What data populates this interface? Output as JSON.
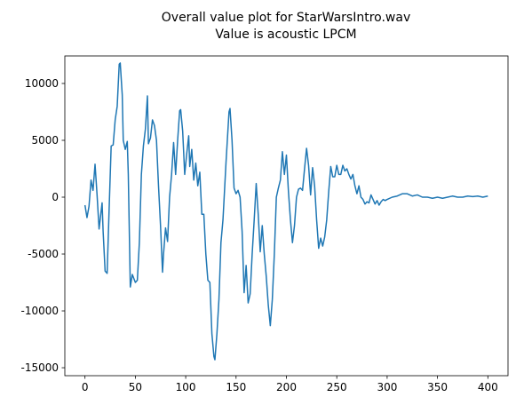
{
  "chart_data": {
    "type": "line",
    "title": "Overall value plot for StarWarsIntro.wav",
    "subtitle": "Value is acoustic LPCM",
    "xlim": [
      -20,
      420
    ],
    "ylim": [
      -15700,
      12420
    ],
    "xticks": [
      0,
      50,
      100,
      150,
      200,
      250,
      300,
      350,
      400
    ],
    "yticks": [
      -15000,
      -10000,
      -5000,
      0,
      5000,
      10000
    ],
    "grid": false,
    "x": [
      0,
      2,
      4,
      6,
      8,
      10,
      12,
      14,
      17,
      18,
      20,
      22,
      24,
      26,
      28,
      30,
      32,
      34,
      35,
      37,
      38,
      40,
      42,
      43,
      45,
      47,
      50,
      52,
      54,
      56,
      58,
      60,
      62,
      63,
      65,
      67,
      69,
      71,
      73,
      75,
      77,
      78,
      80,
      82,
      84,
      86,
      88,
      90,
      92,
      94,
      95,
      97,
      99,
      101,
      103,
      104,
      106,
      108,
      110,
      112,
      114,
      116,
      118,
      120,
      122,
      124,
      126,
      128,
      129,
      131,
      133,
      135,
      137,
      140,
      143,
      144,
      146,
      148,
      150,
      152,
      154,
      156,
      158,
      160,
      162,
      164,
      166,
      168,
      170,
      172,
      174,
      176,
      178,
      180,
      182,
      184,
      186,
      188,
      190,
      192,
      194,
      196,
      198,
      200,
      202,
      204,
      206,
      208,
      210,
      212,
      214,
      216,
      218,
      220,
      222,
      224,
      226,
      228,
      230,
      232,
      234,
      236,
      238,
      240,
      242,
      244,
      246,
      248,
      250,
      252,
      254,
      256,
      258,
      260,
      262,
      264,
      266,
      268,
      270,
      272,
      274,
      276,
      278,
      280,
      282,
      284,
      286,
      288,
      290,
      292,
      294,
      296,
      298,
      300,
      305,
      310,
      315,
      320,
      325,
      330,
      335,
      340,
      345,
      350,
      355,
      360,
      365,
      370,
      375,
      380,
      385,
      390,
      395,
      400
    ],
    "series": [
      {
        "name": "value",
        "color": "#1f77b4",
        "values": [
          -700,
          -1800,
          -800,
          1500,
          600,
          2900,
          200,
          -2800,
          -500,
          -3000,
          -6500,
          -6700,
          -1000,
          4500,
          4600,
          6800,
          8000,
          11700,
          11800,
          9000,
          5000,
          4200,
          4900,
          2000,
          -7900,
          -6800,
          -7500,
          -7300,
          -4000,
          2000,
          4500,
          6000,
          8900,
          4700,
          5200,
          6800,
          6300,
          5000,
          1000,
          -2500,
          -6600,
          -5000,
          -2700,
          -3900,
          0,
          2000,
          4800,
          2000,
          5000,
          7600,
          7700,
          5800,
          2000,
          3800,
          5400,
          2700,
          4200,
          1500,
          3000,
          1000,
          2200,
          -1500,
          -1500,
          -5000,
          -7300,
          -7500,
          -12000,
          -14000,
          -14300,
          -12000,
          -9000,
          -4000,
          -2000,
          3000,
          7500,
          7800,
          5000,
          800,
          300,
          600,
          0,
          -3000,
          -8400,
          -6000,
          -9300,
          -8500,
          -5000,
          -2000,
          1200,
          -1500,
          -4800,
          -2500,
          -5000,
          -7000,
          -9500,
          -11300,
          -9000,
          -5000,
          0,
          800,
          1500,
          4000,
          2000,
          3700,
          500,
          -2000,
          -4000,
          -2500,
          0,
          700,
          800,
          600,
          2500,
          4300,
          2800,
          200,
          2600,
          1000,
          -2000,
          -4500,
          -3600,
          -4300,
          -3500,
          -2000,
          500,
          2700,
          1800,
          1800,
          2800,
          2000,
          2000,
          2800,
          2300,
          2500,
          2000,
          1600,
          2000,
          1000,
          300,
          1000,
          0,
          -200,
          -600,
          -400,
          -500,
          200,
          -200,
          -600,
          -300,
          -700,
          -400,
          -200,
          -300,
          -200,
          0,
          100,
          300,
          300,
          100,
          200,
          0,
          0,
          -100,
          0,
          -100,
          0,
          100,
          0,
          0,
          100,
          50,
          100,
          0,
          100
        ]
      }
    ]
  }
}
